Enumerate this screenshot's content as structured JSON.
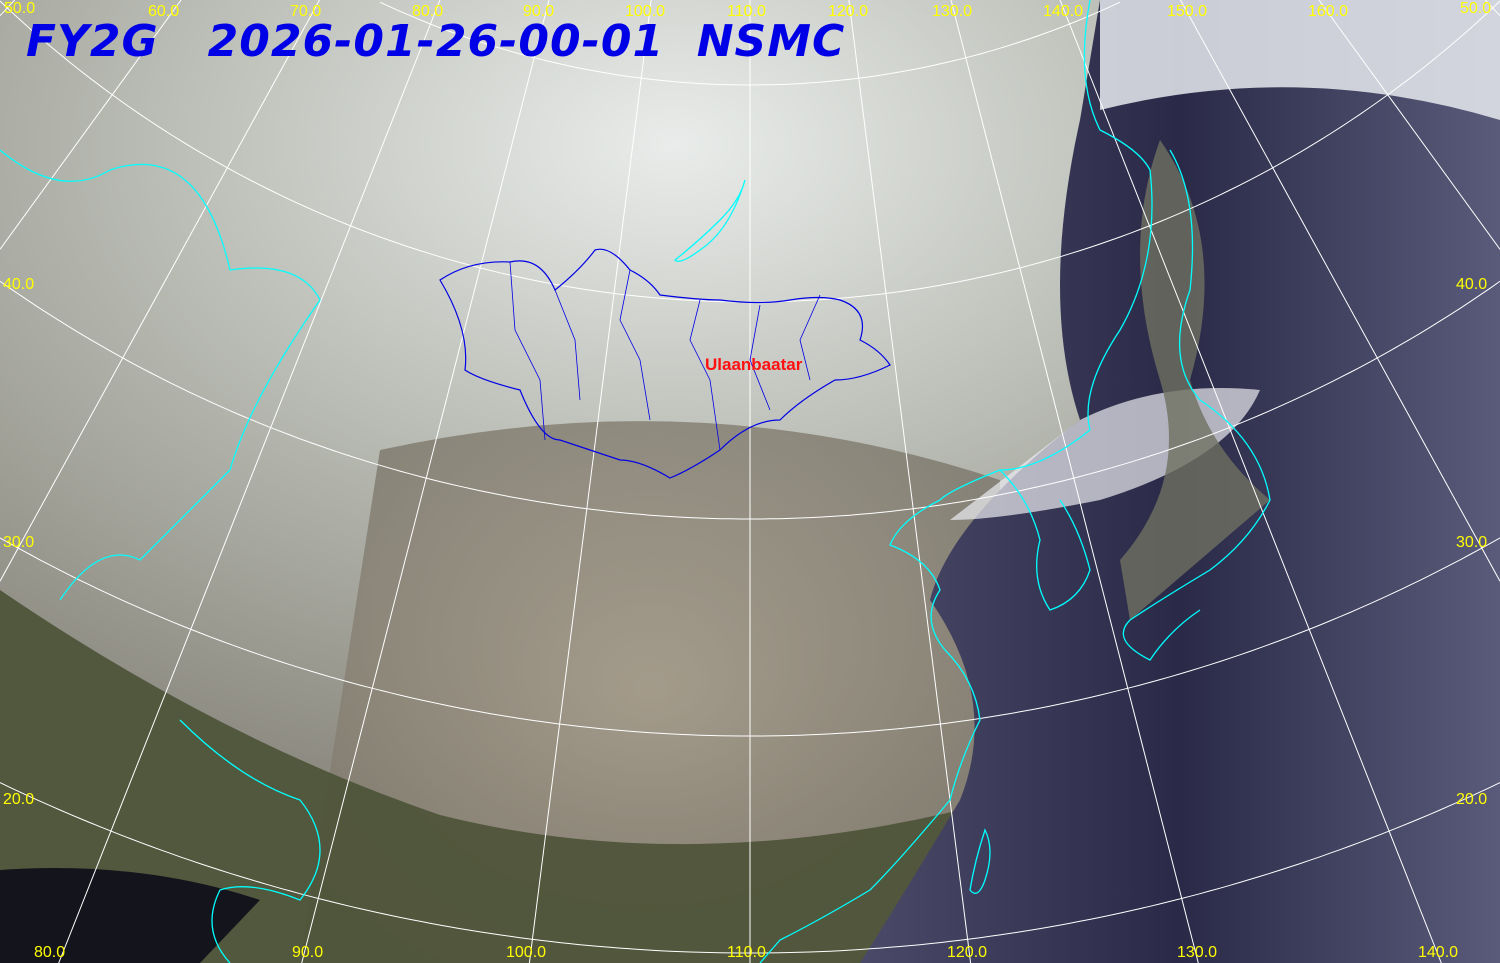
{
  "title": {
    "satellite": "FY2G",
    "datetime": "2026-01-26-00-01",
    "agency": "NSMC"
  },
  "city_label": "Ulaanbaatar",
  "graticule": {
    "top_lon_labels": [
      "50.0",
      "60.0",
      "70.0",
      "80.0",
      "90.0",
      "100.0",
      "110.0",
      "120.0",
      "130.0",
      "140.0",
      "150.0",
      "160.0",
      "50.0"
    ],
    "bottom_lon_labels": [
      "80.0",
      "90.0",
      "100.0",
      "110.0",
      "120.0",
      "130.0",
      "140.0"
    ],
    "left_lat_labels": [
      "40.0",
      "30.0",
      "20.0"
    ],
    "right_lat_labels": [
      "40.0",
      "30.0",
      "20.0"
    ]
  },
  "colors": {
    "title": "#0000e6",
    "grid_labels": "#ffff00",
    "coastline": "#00ffff",
    "mongolia_border": "#0000e6",
    "city": "#ff1010",
    "grid_lines": "#ffffff"
  }
}
